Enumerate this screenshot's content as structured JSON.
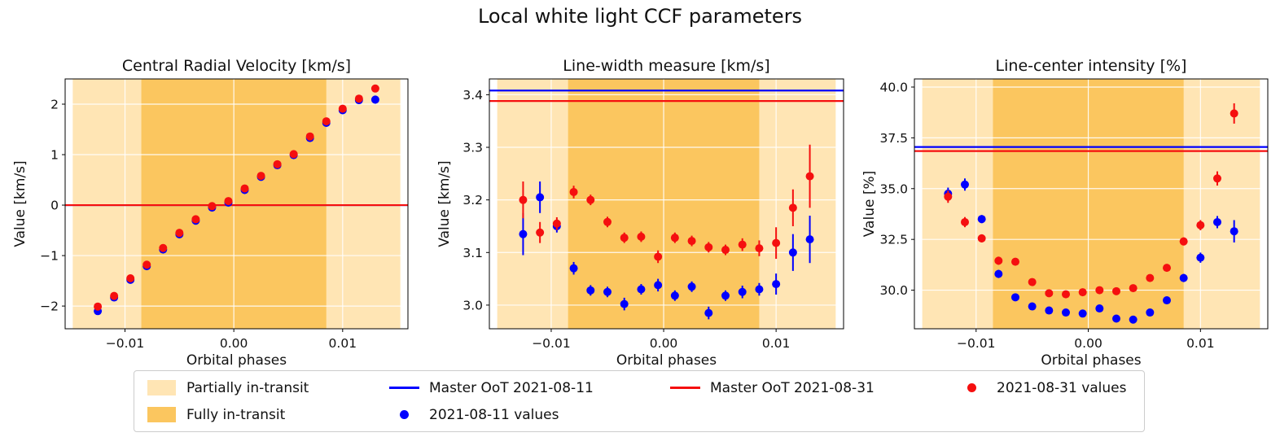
{
  "chart_data": {
    "type": "scatter",
    "suptitle": "Local white light CCF parameters",
    "xlabel": "Orbital phases",
    "x_range": [
      -0.0155,
      0.016
    ],
    "x_ticks": [
      -0.01,
      0.0,
      0.01
    ],
    "x_tick_labels": [
      "−0.01",
      "0.00",
      "0.01"
    ],
    "phases": [
      -0.0125,
      -0.011,
      -0.0095,
      -0.008,
      -0.0065,
      -0.005,
      -0.0035,
      -0.002,
      -0.0005,
      0.001,
      0.0025,
      0.004,
      0.0055,
      0.007,
      0.0085,
      0.01,
      0.0115,
      0.013
    ],
    "regions": {
      "partial_label": "Partially in-transit",
      "full_label": "Fully in-transit",
      "partial_span": [
        -0.0148,
        0.0153
      ],
      "full_span": [
        -0.0085,
        0.0085
      ]
    },
    "colors": {
      "partial": "#ffe5b4",
      "full": "#fbc65f",
      "blue": "#0000ff",
      "red": "#f50f0f",
      "grid": "#ffffff",
      "frame": "#000000"
    },
    "plots": [
      {
        "title": "Central Radial Velocity [km/s]",
        "ylabel": "Value [km/s]",
        "y_range": [
          -2.45,
          2.5
        ],
        "y_ticks": [
          -2,
          -1,
          0,
          1,
          2
        ],
        "y_tick_labels": [
          "−2",
          "−1",
          "0",
          "1",
          "2"
        ],
        "master_oot": {
          "blue": 0.0,
          "red": 0.0
        },
        "series": [
          {
            "name": "2021-08-11 values",
            "color": "blue",
            "values": [
              -2.1,
              -1.83,
              -1.48,
              -1.21,
              -0.88,
              -0.58,
              -0.31,
              -0.05,
              0.05,
              0.3,
              0.56,
              0.79,
              0.99,
              1.33,
              1.63,
              1.88,
              2.08,
              2.09
            ],
            "errors": [
              0.06,
              0.06,
              0.06,
              0.06,
              0.06,
              0.06,
              0.06,
              0.06,
              0.06,
              0.06,
              0.06,
              0.06,
              0.06,
              0.06,
              0.06,
              0.06,
              0.06,
              0.08
            ]
          },
          {
            "name": "2021-08-31 values",
            "color": "red",
            "values": [
              -2.01,
              -1.8,
              -1.45,
              -1.18,
              -0.85,
              -0.55,
              -0.28,
              -0.02,
              0.08,
              0.33,
              0.58,
              0.81,
              1.01,
              1.36,
              1.66,
              1.91,
              2.11,
              2.31
            ],
            "errors": [
              0.06,
              0.06,
              0.06,
              0.06,
              0.06,
              0.06,
              0.06,
              0.06,
              0.06,
              0.06,
              0.06,
              0.06,
              0.06,
              0.06,
              0.06,
              0.06,
              0.06,
              0.07
            ]
          }
        ]
      },
      {
        "title": "Line-width measure [km/s]",
        "ylabel": "Value [km/s]",
        "y_range": [
          2.955,
          3.43
        ],
        "y_ticks": [
          3.0,
          3.1,
          3.2,
          3.3,
          3.4
        ],
        "y_tick_labels": [
          "3.0",
          "3.1",
          "3.2",
          "3.3",
          "3.4"
        ],
        "master_oot": {
          "blue": 3.408,
          "red": 3.388
        },
        "series": [
          {
            "name": "2021-08-11 values",
            "color": "blue",
            "values": [
              3.135,
              3.205,
              3.15,
              3.07,
              3.028,
              3.025,
              3.002,
              3.03,
              3.038,
              3.018,
              3.035,
              2.985,
              3.018,
              3.025,
              3.03,
              3.04,
              3.1,
              3.125
            ],
            "errors": [
              0.04,
              0.03,
              0.012,
              0.012,
              0.01,
              0.01,
              0.012,
              0.01,
              0.012,
              0.01,
              0.01,
              0.012,
              0.01,
              0.012,
              0.012,
              0.02,
              0.035,
              0.045
            ]
          },
          {
            "name": "2021-08-31 values",
            "color": "red",
            "values": [
              3.2,
              3.138,
              3.155,
              3.215,
              3.2,
              3.158,
              3.128,
              3.13,
              3.092,
              3.128,
              3.122,
              3.11,
              3.105,
              3.115,
              3.108,
              3.118,
              3.185,
              3.245
            ],
            "errors": [
              0.035,
              0.02,
              0.012,
              0.012,
              0.01,
              0.01,
              0.01,
              0.01,
              0.012,
              0.01,
              0.01,
              0.01,
              0.01,
              0.012,
              0.015,
              0.03,
              0.035,
              0.06
            ]
          }
        ]
      },
      {
        "title": "Line-center intensity [%]",
        "ylabel": "Value [%]",
        "y_range": [
          28.1,
          40.4
        ],
        "y_ticks": [
          30.0,
          32.5,
          35.0,
          37.5,
          40.0
        ],
        "y_tick_labels": [
          "30.0",
          "32.5",
          "35.0",
          "37.5",
          "40.0"
        ],
        "master_oot": {
          "blue": 37.05,
          "red": 36.85
        },
        "series": [
          {
            "name": "2021-08-11 values",
            "color": "blue",
            "values": [
              34.75,
              35.2,
              33.5,
              30.8,
              29.65,
              29.2,
              29.0,
              28.9,
              28.85,
              29.1,
              28.6,
              28.55,
              28.9,
              29.5,
              30.6,
              31.6,
              33.35,
              32.9
            ],
            "errors": [
              0.3,
              0.3,
              0.2,
              0.2,
              0.15,
              0.15,
              0.15,
              0.15,
              0.15,
              0.15,
              0.15,
              0.15,
              0.15,
              0.15,
              0.2,
              0.25,
              0.3,
              0.55
            ]
          },
          {
            "name": "2021-08-31 values",
            "color": "red",
            "values": [
              34.6,
              33.35,
              32.55,
              31.45,
              31.4,
              30.4,
              29.85,
              29.8,
              29.9,
              30.0,
              29.95,
              30.1,
              30.6,
              31.1,
              32.4,
              33.2,
              35.5,
              38.7
            ],
            "errors": [
              0.3,
              0.25,
              0.2,
              0.2,
              0.15,
              0.15,
              0.12,
              0.12,
              0.12,
              0.12,
              0.12,
              0.12,
              0.15,
              0.15,
              0.2,
              0.25,
              0.35,
              0.5
            ]
          }
        ]
      }
    ],
    "legend": {
      "columns": [
        [
          {
            "swatch": "patch",
            "color": "partial",
            "label": "Partially in-transit"
          },
          {
            "swatch": "patch",
            "color": "full",
            "label": "Fully in-transit"
          }
        ],
        [
          {
            "swatch": "line",
            "color": "blue",
            "label": "Master OoT 2021-08-11"
          },
          {
            "swatch": "dot",
            "color": "blue",
            "label": "2021-08-11 values"
          }
        ],
        [
          {
            "swatch": "line",
            "color": "red",
            "label": "Master OoT 2021-08-31"
          }
        ],
        [
          {
            "swatch": "dot",
            "color": "red",
            "label": "2021-08-31 values"
          }
        ]
      ]
    }
  }
}
